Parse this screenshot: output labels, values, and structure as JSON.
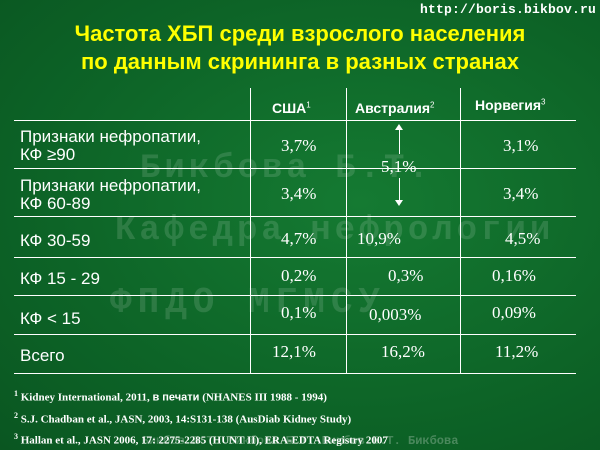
{
  "url": "http://boris.bikbov.ru",
  "title": {
    "line1": "Частота ХБП среди взрослого населения",
    "line2": "по данным скрининга в разных странах"
  },
  "columns": [
    {
      "label": "США",
      "sup": "1"
    },
    {
      "label": "Австралия",
      "sup": "2"
    },
    {
      "label": "Норвегия",
      "sup": "3"
    }
  ],
  "rows": [
    {
      "label_line1": "Признаки нефропатии,",
      "label_line2": "КФ ≥90",
      "usa": "3,7%",
      "australia": "",
      "norway": "3,1%"
    },
    {
      "label_line1": "Признаки нефропатии,",
      "label_line2": "КФ 60-89",
      "usa": "3,4%",
      "australia": "",
      "norway": "3,4%"
    },
    {
      "label_line1": "КФ 30-59",
      "usa": "4,7%",
      "australia": "10,9%",
      "norway": "4,5%"
    },
    {
      "label_line1": "КФ 15 - 29",
      "usa": "0,2%",
      "australia": "0,3%",
      "norway": "0,16%"
    },
    {
      "label_line1": "КФ < 15",
      "usa": "0,1%",
      "australia": "0,003%",
      "norway": "0,09%"
    },
    {
      "label_line1": "Всего",
      "usa": "12,1%",
      "australia": "16,2%",
      "norway": "11,2%"
    }
  ],
  "australia_merged": "5,1%",
  "footnotes": [
    {
      "num": "1",
      "text_a": "Kidney International, 2011, ",
      "text_b": "в печати",
      "text_c": " (NHANES III 1988 - 1994)"
    },
    {
      "num": "2",
      "text": "S.J. Chadban et al., JASN, 2003, 14:S131-138 (AusDiab Kidney Study)"
    },
    {
      "num": "3",
      "text": "Hallan et al., JASN 2006, 17: 2275-2285 (HUNT II), ERA-EDTA Registry 2007"
    }
  ],
  "watermark": {
    "line1": "Кафедра нефрологии",
    "line2": "ФПДО МГМСУ",
    "name": "Бикбова Б.Т.",
    "bottom": "Бикбов Б.Т. Бикбова Б.Т. Бикбов Б.Т. Бикбова"
  }
}
